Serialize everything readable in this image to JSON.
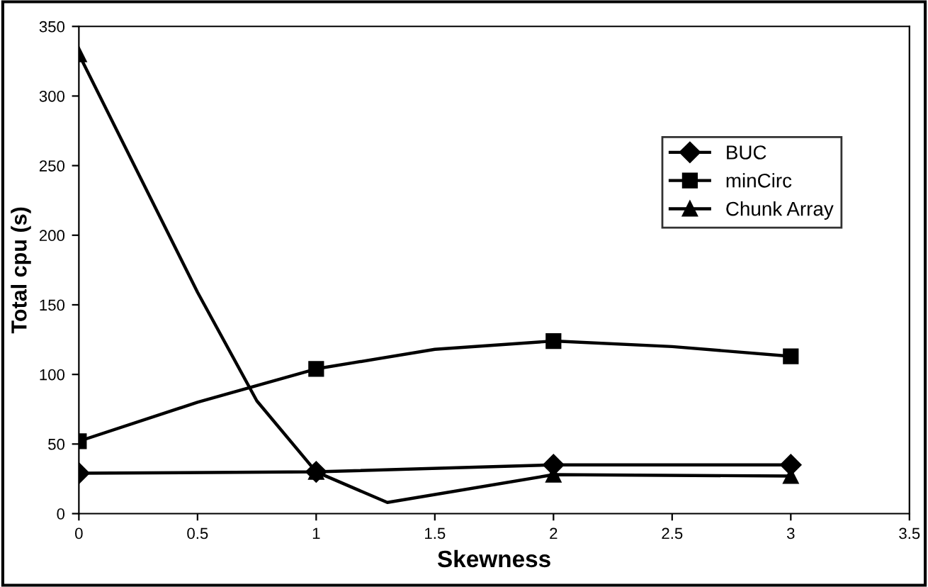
{
  "chart_data": {
    "type": "line",
    "xlabel": "Skewness",
    "ylabel": "Total cpu (s)",
    "x": [
      0,
      1,
      2,
      3
    ],
    "series": [
      {
        "name": "BUC",
        "color": "#000000",
        "marker": "diamond",
        "values": [
          29,
          30,
          35,
          35
        ]
      },
      {
        "name": "minCirc",
        "color": "#000000",
        "marker": "square",
        "x": [
          0,
          0.5,
          1,
          1.5,
          2,
          2.5,
          3
        ],
        "values": [
          52,
          80,
          104,
          118,
          124,
          120,
          113
        ]
      },
      {
        "name": "Chunk Array",
        "color": "#000000",
        "marker": "triangle",
        "x": [
          0,
          0.5,
          0.75,
          1,
          1.3,
          2,
          3
        ],
        "values": [
          330,
          159,
          81,
          30,
          8,
          28,
          27
        ]
      }
    ],
    "xlim": [
      0,
      3.5
    ],
    "xticks": [
      0,
      0.5,
      1,
      1.5,
      2,
      2.5,
      3,
      3.5
    ],
    "ylim": [
      0,
      350
    ],
    "yticks": [
      0,
      50,
      100,
      150,
      200,
      250,
      300,
      350
    ],
    "grid": false,
    "legend": "right",
    "line_style": "solid"
  }
}
